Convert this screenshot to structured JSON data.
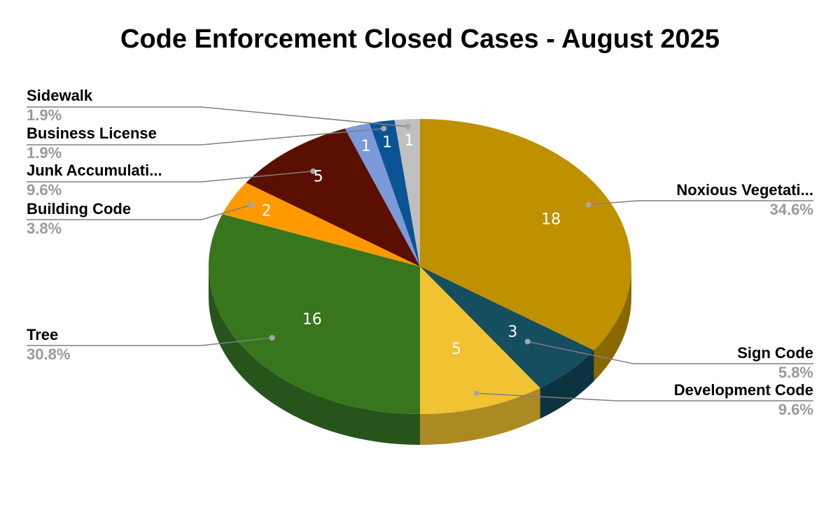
{
  "chart_data": {
    "type": "pie",
    "title": "Code Enforcement Closed Cases - August 2025",
    "slices": [
      {
        "label": "Noxious Vegetati...",
        "value": 18,
        "percent": "34.6%",
        "color": "#bf9000",
        "side_color": "#8a6800"
      },
      {
        "label": "Sign Code",
        "value": 3,
        "percent": "5.8%",
        "color": "#154e5e",
        "side_color": "#0c3440"
      },
      {
        "label": "Development Code",
        "value": 5,
        "percent": "9.6%",
        "color": "#f1c232",
        "side_color": "#ac8a22"
      },
      {
        "label": "Tree",
        "value": 16,
        "percent": "30.8%",
        "color": "#38761d",
        "side_color": "#26541a"
      },
      {
        "label": "Building Code",
        "value": 2,
        "percent": "3.8%",
        "color": "#ff9900",
        "side_color": "#b36b00"
      },
      {
        "label": "Junk Accumulati...",
        "value": 5,
        "percent": "9.6%",
        "color": "#5b0f00",
        "side_color": "#3d0a00"
      },
      {
        "label": "Business License",
        "value": 1,
        "percent": "1.9%",
        "color": "#7b9ad9",
        "side_color": "#536fa3"
      },
      {
        "label": "Business License",
        "value": 1,
        "percent": "1.9%",
        "color": "#0b5394",
        "side_color": "#073a68"
      },
      {
        "label": "Sidewalk",
        "value": 1,
        "percent": "1.9%",
        "color": "#bfbfbf",
        "side_color": "#8c8c8c"
      }
    ]
  }
}
